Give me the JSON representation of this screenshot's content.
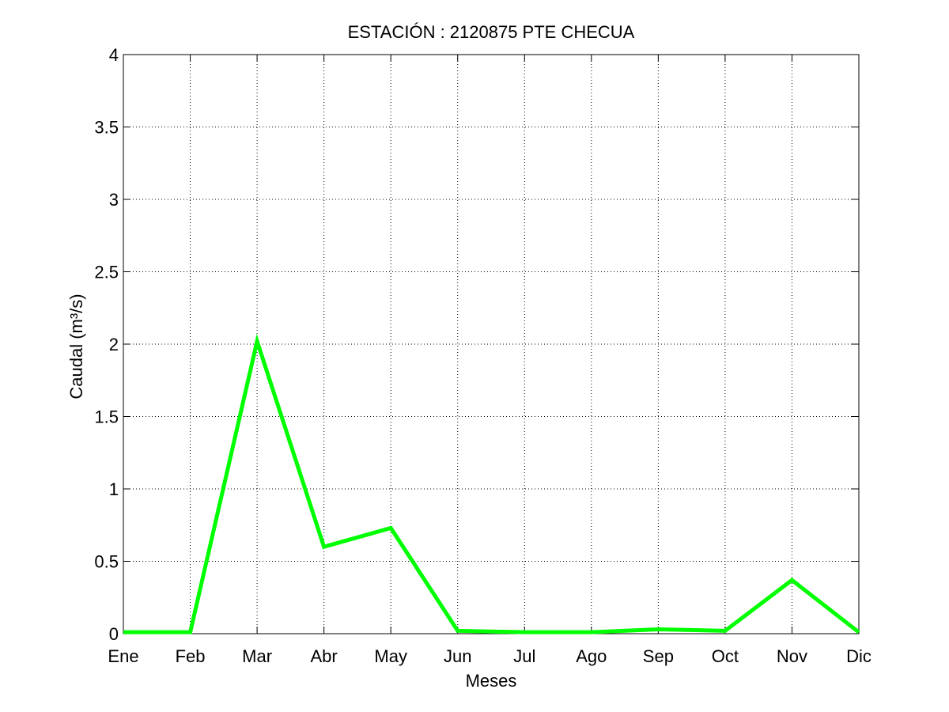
{
  "chart_data": {
    "type": "line",
    "title": "ESTACIÓN :  2120875  PTE CHECUA",
    "xlabel": "Meses",
    "ylabel": "Caudal (m³/s)",
    "categories": [
      "Ene",
      "Feb",
      "Mar",
      "Abr",
      "May",
      "Jun",
      "Jul",
      "Ago",
      "Sep",
      "Oct",
      "Nov",
      "Dic"
    ],
    "series": [
      {
        "color": "#00ff00",
        "values": [
          0.01,
          0.01,
          2.02,
          0.6,
          0.73,
          0.02,
          0.01,
          0.01,
          0.03,
          0.02,
          0.37,
          0.01
        ]
      }
    ],
    "ylim": [
      0,
      4
    ],
    "yticks": [
      0,
      0.5,
      1,
      1.5,
      2,
      2.5,
      3,
      3.5,
      4
    ],
    "ytick_labels": [
      "0",
      "0.5",
      "1",
      "1.5",
      "2",
      "2.5",
      "3",
      "3.5",
      "4"
    ],
    "grid": true
  }
}
